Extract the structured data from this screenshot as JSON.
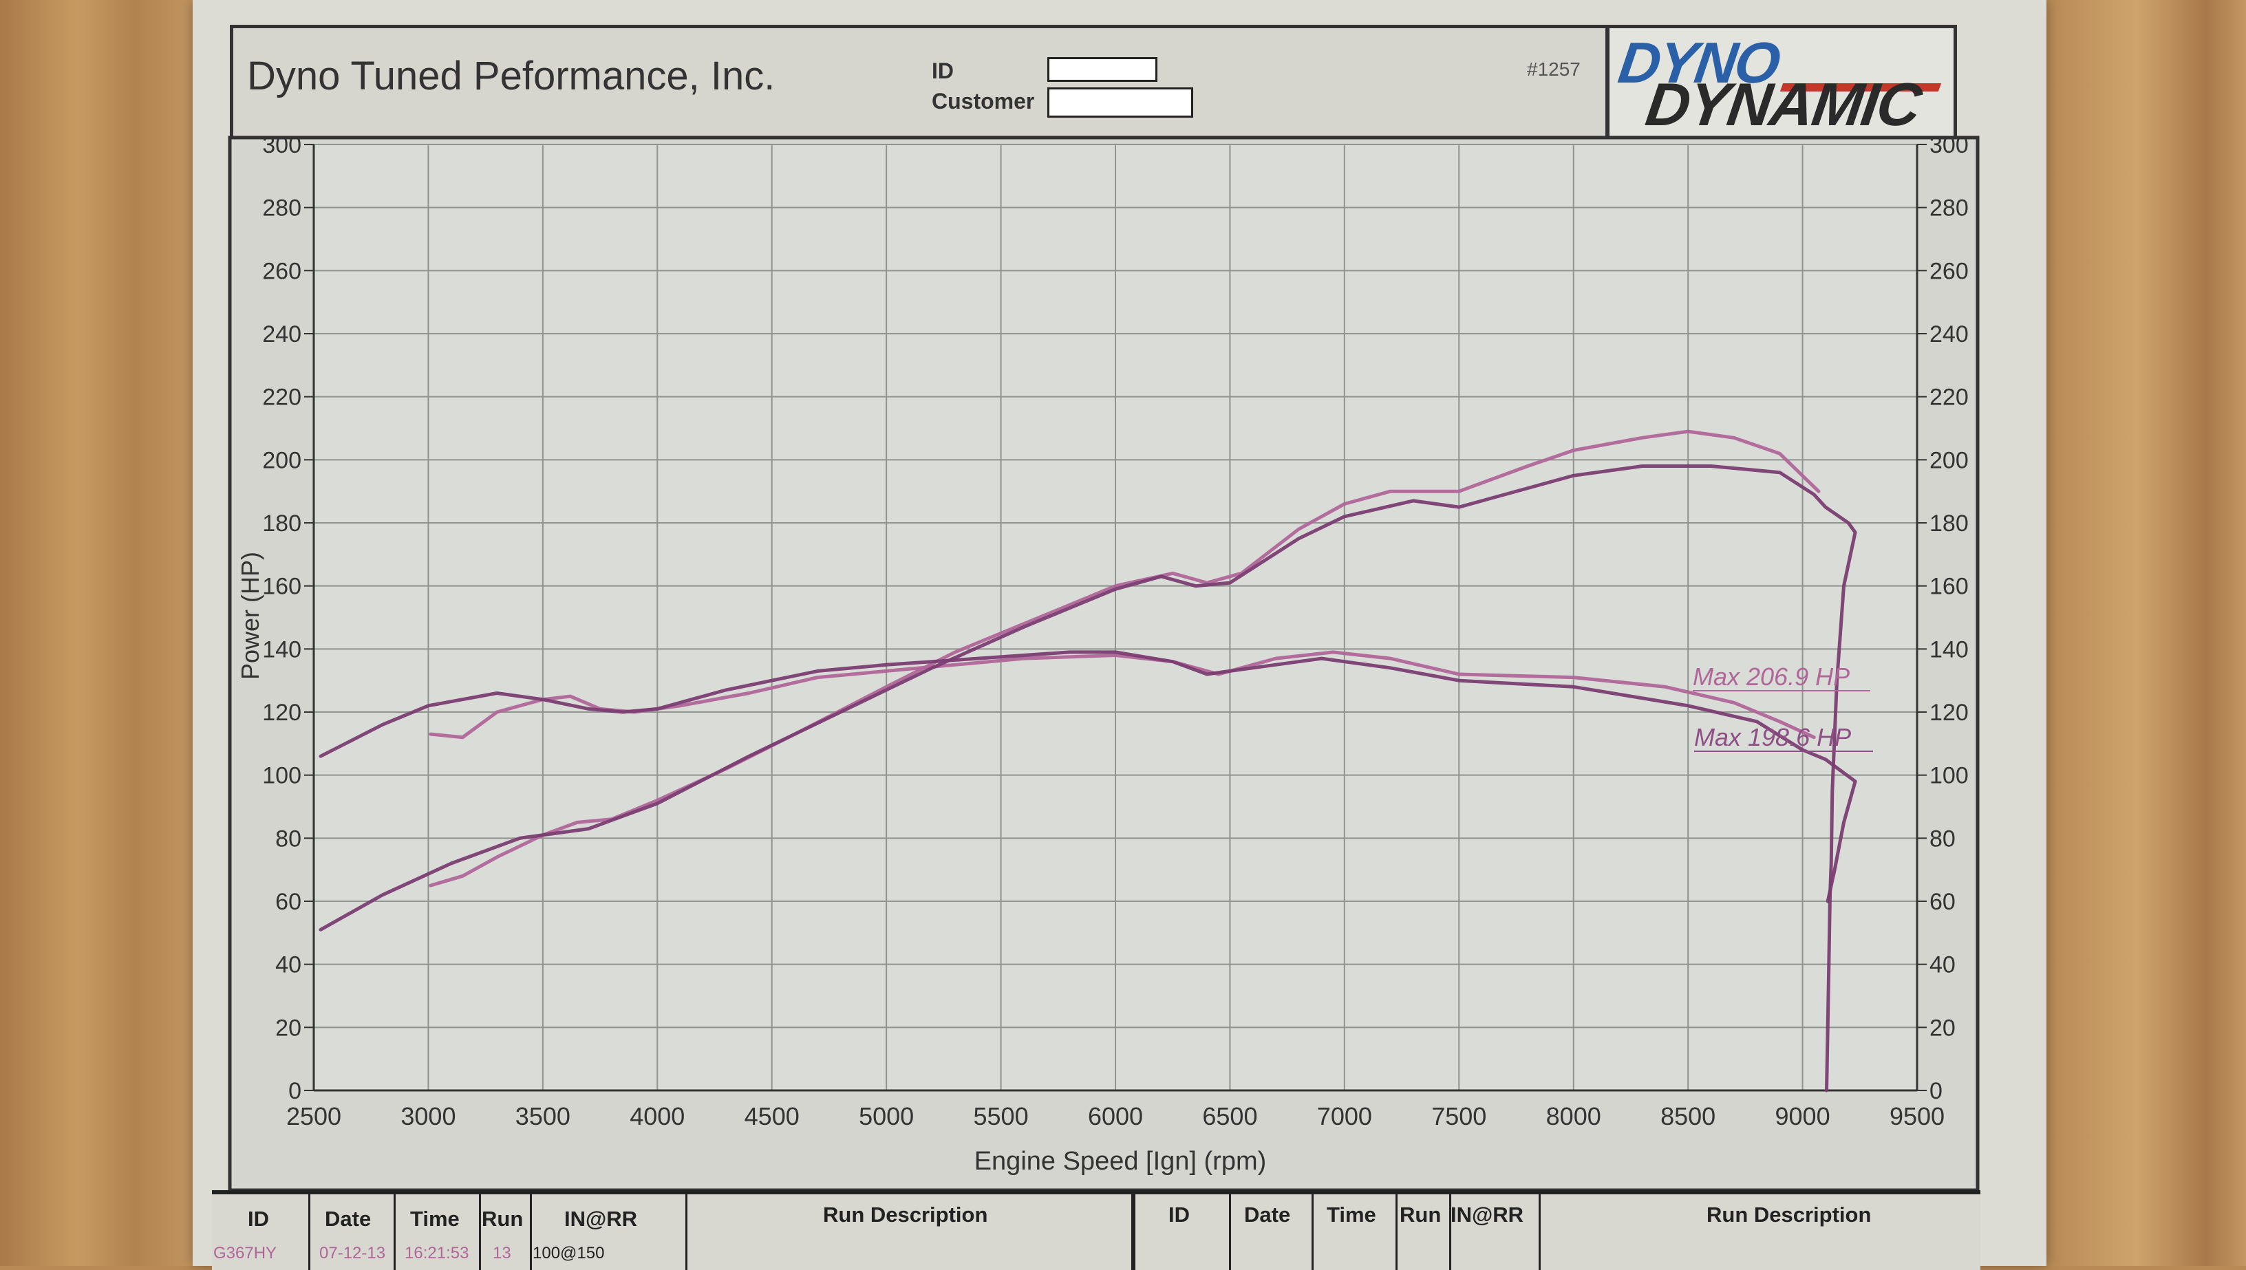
{
  "header": {
    "company": "Dyno Tuned Peformance,  Inc.",
    "id_label": "ID",
    "customer_label": "Customer",
    "id_value": "",
    "customer_value": "",
    "report_number": "#1257",
    "logo_top": "DYNO",
    "logo_bottom": "DYNAMIC"
  },
  "colors": {
    "series_1": "#b1669a",
    "series_2": "#7a3d72",
    "grid": "#8f948f",
    "plot_bg": "#d9dcd7",
    "logo_blue": "#2a60a8",
    "logo_red": "#c0392b"
  },
  "chart_data": {
    "type": "line",
    "title": "",
    "xlabel": "Engine Speed [Ign] (rpm)",
    "ylabel": "Power (HP)",
    "xlim": [
      2500,
      9500
    ],
    "ylim": [
      0,
      300
    ],
    "grid": true,
    "x_ticks": [
      "2500",
      "3000",
      "3500",
      "4000",
      "4500",
      "5000",
      "5500",
      "6000",
      "6500",
      "7000",
      "7500",
      "8000",
      "8500",
      "9000",
      "9500"
    ],
    "y_ticks_left": [
      "0",
      "20",
      "40",
      "60",
      "80",
      "100",
      "120",
      "140",
      "160",
      "180",
      "200",
      "220",
      "240",
      "260",
      "280",
      "300"
    ],
    "y_ticks_right": [
      "0",
      "20",
      "40",
      "60",
      "80",
      "100",
      "120",
      "140",
      "160",
      "180",
      "200",
      "220",
      "240",
      "260",
      "280",
      "300"
    ],
    "annotations": [
      "Max 206.9 HP",
      "Max 198.6 HP"
    ],
    "series": [
      {
        "run": "light",
        "power": [
          [
            3010,
            65
          ],
          [
            3150,
            68
          ],
          [
            3300,
            74
          ],
          [
            3500,
            81
          ],
          [
            3650,
            85
          ],
          [
            3800,
            86
          ],
          [
            4000,
            92
          ],
          [
            4300,
            102
          ],
          [
            4600,
            113
          ],
          [
            5000,
            128
          ],
          [
            5300,
            139
          ],
          [
            5600,
            148
          ],
          [
            6000,
            160
          ],
          [
            6250,
            164
          ],
          [
            6400,
            161
          ],
          [
            6550,
            164
          ],
          [
            6800,
            178
          ],
          [
            7000,
            186
          ],
          [
            7200,
            190
          ],
          [
            7350,
            190
          ],
          [
            7500,
            190
          ],
          [
            7800,
            198
          ],
          [
            8000,
            203
          ],
          [
            8300,
            207
          ],
          [
            8500,
            209
          ],
          [
            8700,
            207
          ],
          [
            8900,
            202
          ],
          [
            9070,
            190
          ]
        ],
        "torque": [
          [
            3010,
            113
          ],
          [
            3150,
            112
          ],
          [
            3300,
            120
          ],
          [
            3500,
            124
          ],
          [
            3620,
            125
          ],
          [
            3750,
            121
          ],
          [
            3900,
            120
          ],
          [
            4100,
            122
          ],
          [
            4400,
            126
          ],
          [
            4700,
            131
          ],
          [
            5000,
            133
          ],
          [
            5300,
            135
          ],
          [
            5600,
            137
          ],
          [
            6000,
            138
          ],
          [
            6250,
            136
          ],
          [
            6450,
            132
          ],
          [
            6700,
            137
          ],
          [
            6950,
            139
          ],
          [
            7200,
            137
          ],
          [
            7500,
            132
          ],
          [
            8000,
            131
          ],
          [
            8400,
            128
          ],
          [
            8700,
            123
          ],
          [
            8900,
            117
          ],
          [
            9050,
            112
          ]
        ]
      },
      {
        "run": "dark",
        "power": [
          [
            2530,
            51
          ],
          [
            2800,
            62
          ],
          [
            3100,
            72
          ],
          [
            3400,
            80
          ],
          [
            3700,
            83
          ],
          [
            4000,
            91
          ],
          [
            4400,
            106
          ],
          [
            4800,
            120
          ],
          [
            5200,
            134
          ],
          [
            5600,
            147
          ],
          [
            6000,
            159
          ],
          [
            6200,
            163
          ],
          [
            6350,
            160
          ],
          [
            6500,
            161
          ],
          [
            6800,
            175
          ],
          [
            7000,
            182
          ],
          [
            7300,
            187
          ],
          [
            7500,
            185
          ],
          [
            7800,
            191
          ],
          [
            8000,
            195
          ],
          [
            8300,
            198
          ],
          [
            8600,
            198
          ],
          [
            8900,
            196
          ],
          [
            9050,
            189
          ],
          [
            9100,
            185
          ],
          [
            9200,
            180
          ],
          [
            9230,
            177
          ],
          [
            9180,
            160
          ],
          [
            9150,
            130
          ],
          [
            9130,
            95
          ],
          [
            9125,
            72
          ],
          [
            9120,
            62
          ],
          [
            9115,
            40
          ],
          [
            9110,
            20
          ],
          [
            9105,
            0
          ]
        ],
        "torque": [
          [
            2530,
            106
          ],
          [
            2800,
            116
          ],
          [
            3000,
            122
          ],
          [
            3300,
            126
          ],
          [
            3500,
            124
          ],
          [
            3700,
            121
          ],
          [
            3850,
            120
          ],
          [
            4000,
            121
          ],
          [
            4300,
            127
          ],
          [
            4700,
            133
          ],
          [
            5000,
            135
          ],
          [
            5400,
            137
          ],
          [
            5800,
            139
          ],
          [
            6000,
            139
          ],
          [
            6250,
            136
          ],
          [
            6400,
            132
          ],
          [
            6600,
            134
          ],
          [
            6900,
            137
          ],
          [
            7200,
            134
          ],
          [
            7500,
            130
          ],
          [
            8000,
            128
          ],
          [
            8500,
            122
          ],
          [
            8800,
            117
          ],
          [
            9000,
            108
          ],
          [
            9100,
            105
          ],
          [
            9230,
            98
          ],
          [
            9180,
            85
          ],
          [
            9140,
            70
          ],
          [
            9110,
            60
          ]
        ]
      }
    ]
  },
  "table": {
    "left_headers": [
      "ID",
      "Date",
      "Time",
      "Run",
      "IN@RR",
      "Run Description"
    ],
    "right_headers": [
      "ID",
      "Date",
      "Time",
      "Run",
      "IN@RR",
      "Run Description"
    ],
    "row1": [
      "G367HY",
      "07-12-13",
      "16:21:53",
      "13",
      "100@150"
    ]
  }
}
